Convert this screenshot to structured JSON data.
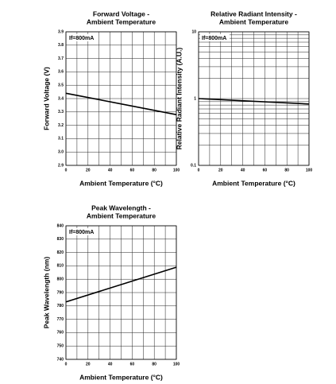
{
  "chart_data": [
    {
      "type": "line",
      "title": [
        "Forward Voltage -",
        "Ambient Temperature"
      ],
      "annotation": "If=800mA",
      "xlabel": "Ambient Temperature (°C)",
      "ylabel": "Forward Voltage (V)",
      "x": [
        0,
        100
      ],
      "values": [
        3.44,
        3.28
      ],
      "color": "#000000",
      "xlim": [
        0,
        100
      ],
      "xticks": [
        0,
        20,
        40,
        60,
        80,
        100
      ],
      "xgrid": [
        10,
        30,
        50,
        70,
        90
      ],
      "ylim": [
        2.9,
        3.9
      ],
      "yticks": [
        2.9,
        {
          "value": 3,
          "label": "3.0"
        },
        3.1,
        3.2,
        3.3,
        3.4,
        3.5,
        3.6,
        3.7,
        3.8,
        3.9
      ],
      "grid": true
    },
    {
      "type": "line",
      "title": [
        "Relative Radiant Intensity -",
        "Ambient Temperature"
      ],
      "annotation": "If=800mA",
      "xlabel": "Ambient Temperature (°C)",
      "ylabel": "Relative Radiant Intensity (A.U.)",
      "x": [
        0,
        100
      ],
      "values": [
        1.0,
        0.83
      ],
      "color": "#000000",
      "log_y": true,
      "xlim": [
        0,
        100
      ],
      "xticks": [
        0,
        20,
        40,
        60,
        80,
        100
      ],
      "xgrid": [
        10,
        30,
        50,
        70,
        90
      ],
      "ylim": [
        0.1,
        10
      ],
      "yticks": [
        0.1,
        1,
        10
      ],
      "ygrid": [
        0.2,
        0.3,
        0.4,
        0.5,
        0.6,
        0.7,
        0.8,
        0.9,
        2,
        3,
        4,
        5,
        6,
        7,
        8,
        9
      ],
      "grid": true
    },
    {
      "type": "line",
      "title": [
        "Peak Wavelength -",
        "Ambient Temperature"
      ],
      "annotation": "If=800mA",
      "xlabel": "Ambient Temperature (°C)",
      "ylabel": "Peak Wavelength (nm)",
      "x": [
        0,
        100
      ],
      "values": [
        783,
        809
      ],
      "color": "#000000",
      "xlim": [
        0,
        100
      ],
      "xticks": [
        0,
        20,
        40,
        60,
        80,
        100
      ],
      "xgrid": [
        10,
        30,
        50,
        70,
        90
      ],
      "ylim": [
        740,
        840
      ],
      "yticks": [
        740,
        750,
        760,
        770,
        780,
        790,
        800,
        810,
        820,
        830,
        840
      ],
      "grid": true
    }
  ]
}
